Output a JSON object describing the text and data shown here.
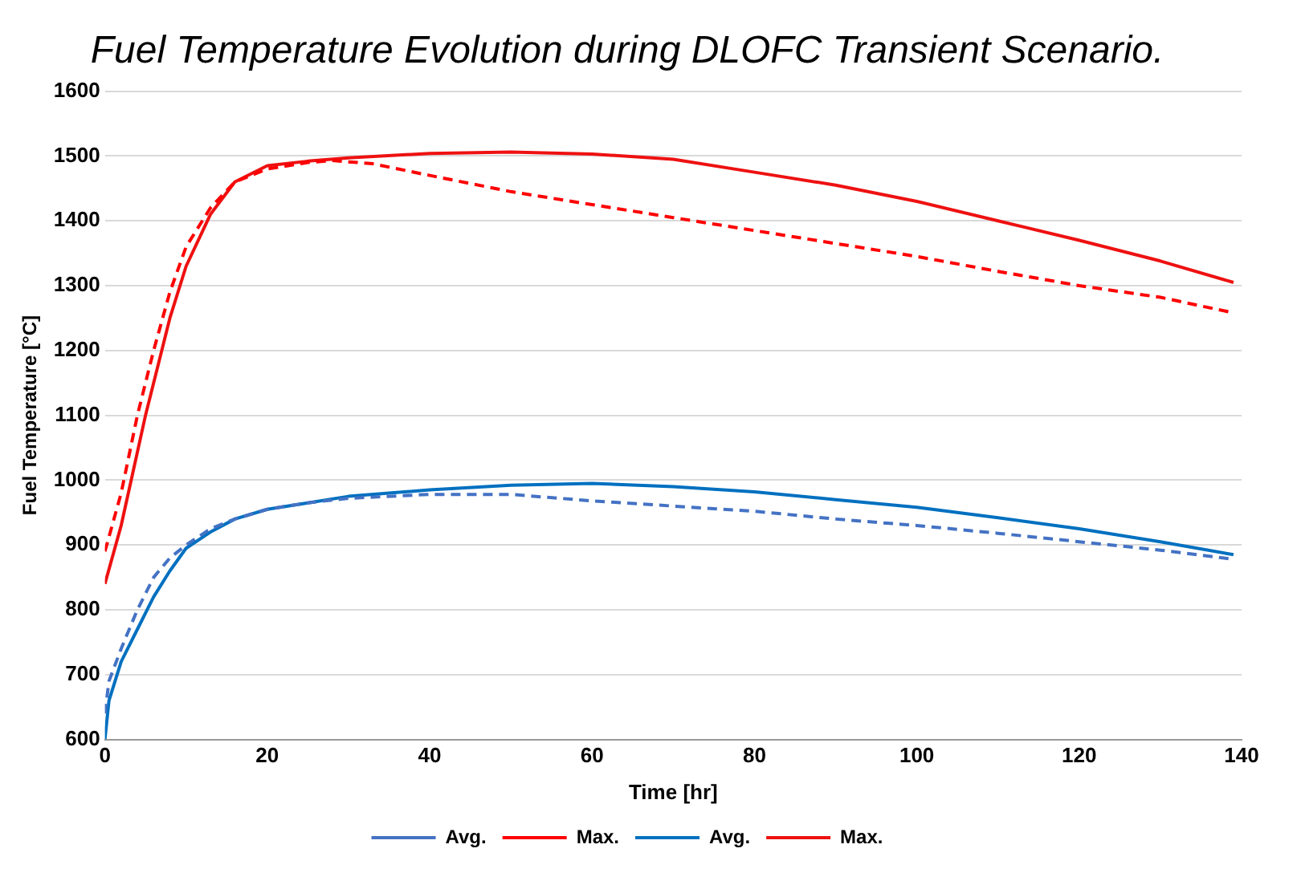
{
  "chart_data": {
    "type": "line",
    "title": "Fuel Temperature Evolution during DLOFC Transient Scenario.",
    "xlabel": "Time [hr]",
    "ylabel": "Fuel Temperature [°C]",
    "xlim": [
      0,
      140
    ],
    "xticks": [
      0,
      20,
      40,
      60,
      80,
      100,
      120,
      140
    ],
    "ylim": [
      600,
      1600
    ],
    "yticks": [
      600,
      700,
      800,
      900,
      1000,
      1100,
      1200,
      1300,
      1400,
      1500,
      1600
    ],
    "grid": "y",
    "legend": "bottom",
    "marker": "none",
    "series": [
      {
        "name": "Avg.",
        "color": "#4472c4",
        "line_style": "dashed",
        "x": [
          0,
          0.5,
          2,
          4,
          6,
          8,
          10,
          13,
          16,
          20,
          25,
          30,
          40,
          50,
          60,
          70,
          80,
          90,
          100,
          110,
          120,
          130,
          139
        ],
        "values": [
          640,
          690,
          740,
          800,
          850,
          880,
          900,
          925,
          940,
          955,
          965,
          972,
          978,
          978,
          968,
          960,
          952,
          940,
          930,
          918,
          905,
          892,
          878
        ]
      },
      {
        "name": "Max.",
        "color": "#ff0000",
        "line_style": "dashed",
        "x": [
          0,
          2,
          4,
          6,
          8,
          10,
          13,
          16,
          20,
          25,
          28,
          33,
          40,
          50,
          60,
          70,
          80,
          90,
          100,
          110,
          120,
          130,
          139
        ],
        "values": [
          890,
          980,
          1100,
          1200,
          1290,
          1360,
          1420,
          1460,
          1480,
          1490,
          1493,
          1488,
          1470,
          1445,
          1425,
          1405,
          1385,
          1365,
          1345,
          1322,
          1300,
          1282,
          1258
        ]
      },
      {
        "name": "Avg.",
        "color": "#0070c0",
        "line_style": "solid",
        "x": [
          0,
          0.5,
          2,
          4,
          6,
          8,
          10,
          13,
          16,
          20,
          25,
          30,
          40,
          50,
          60,
          70,
          80,
          90,
          100,
          110,
          120,
          130,
          139
        ],
        "values": [
          600,
          660,
          720,
          770,
          820,
          860,
          895,
          920,
          940,
          955,
          965,
          975,
          985,
          992,
          995,
          990,
          982,
          970,
          958,
          942,
          925,
          905,
          885
        ]
      },
      {
        "name": "Max.",
        "color": "#ee1111",
        "line_style": "solid",
        "x": [
          0,
          2,
          5,
          8,
          10,
          13,
          16,
          20,
          25,
          30,
          40,
          50,
          60,
          70,
          80,
          90,
          100,
          110,
          120,
          130,
          139
        ],
        "values": [
          840,
          930,
          1100,
          1250,
          1330,
          1410,
          1460,
          1485,
          1492,
          1497,
          1504,
          1506,
          1503,
          1495,
          1475,
          1455,
          1430,
          1400,
          1370,
          1338,
          1305
        ]
      }
    ]
  }
}
